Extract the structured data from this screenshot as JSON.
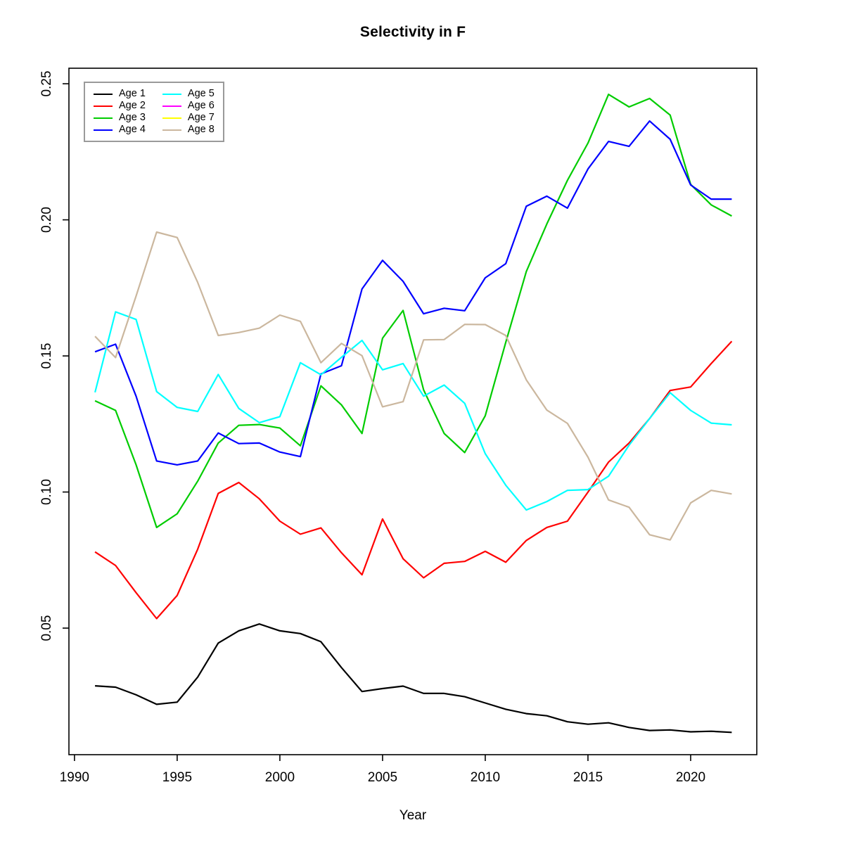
{
  "title": "Selectivity in F",
  "chart_data": {
    "type": "line",
    "title": "Selectivity in F",
    "xlabel": "Year",
    "ylabel": "",
    "grid": false,
    "legend_position": "top-left",
    "legend_columns": 2,
    "x_ticks": [
      1990,
      1995,
      2000,
      2005,
      2010,
      2015,
      2020
    ],
    "x_tick_labels": [
      "1990",
      "1995",
      "2000",
      "2005",
      "2010",
      "2015",
      "2020"
    ],
    "y_ticks": [
      0.05,
      0.1,
      0.15,
      0.2,
      0.25
    ],
    "y_tick_labels": [
      "0.05",
      "0.10",
      "0.15",
      "0.20",
      "0.25"
    ],
    "xlim": [
      1989.73,
      2023.22
    ],
    "ylim": [
      0.0035,
      0.2557
    ],
    "x": [
      1991,
      1992,
      1993,
      1994,
      1995,
      1996,
      1997,
      1998,
      1999,
      2000,
      2001,
      2002,
      2003,
      2004,
      2005,
      2006,
      2007,
      2008,
      2009,
      2010,
      2011,
      2012,
      2013,
      2014,
      2015,
      2016,
      2017,
      2018,
      2019,
      2020,
      2021,
      2022
    ],
    "series": [
      {
        "name": "Age 1",
        "color": "#000000",
        "visible": true,
        "values": [
          0.0288,
          0.0283,
          0.0255,
          0.022,
          0.0228,
          0.032,
          0.0445,
          0.049,
          0.0515,
          0.049,
          0.048,
          0.045,
          0.0355,
          0.0267,
          0.0278,
          0.0287,
          0.026,
          0.026,
          0.0248,
          0.0225,
          0.0202,
          0.0186,
          0.0178,
          0.0156,
          0.0147,
          0.0152,
          0.0135,
          0.0124,
          0.0126,
          0.0119,
          0.0121,
          0.0117
        ]
      },
      {
        "name": "Age 2",
        "color": "#FF0000",
        "visible": true,
        "values": [
          0.078,
          0.073,
          0.063,
          0.0535,
          0.062,
          0.079,
          0.0995,
          0.1035,
          0.0975,
          0.0893,
          0.0845,
          0.0868,
          0.0777,
          0.0696,
          0.0901,
          0.0755,
          0.0685,
          0.0738,
          0.0745,
          0.0782,
          0.0742,
          0.0822,
          0.087,
          0.0893,
          0.1,
          0.111,
          0.118,
          0.127,
          0.1373,
          0.1386,
          0.1472,
          0.1554
        ]
      },
      {
        "name": "Age 3",
        "color": "#00CC00",
        "visible": true,
        "values": [
          0.1335,
          0.13,
          0.11,
          0.087,
          0.092,
          0.104,
          0.118,
          0.1245,
          0.1248,
          0.1235,
          0.117,
          0.139,
          0.132,
          0.1215,
          0.1565,
          0.1667,
          0.1375,
          0.1215,
          0.1145,
          0.128,
          0.155,
          0.181,
          0.1985,
          0.2145,
          0.2282,
          0.2461,
          0.2415,
          0.2446,
          0.2385,
          0.213,
          0.2055,
          0.2014
        ]
      },
      {
        "name": "Age 4",
        "color": "#0000FF",
        "visible": true,
        "values": [
          0.1515,
          0.1543,
          0.1352,
          0.1114,
          0.11,
          0.1114,
          0.1217,
          0.1178,
          0.118,
          0.1147,
          0.113,
          0.1434,
          0.1464,
          0.1746,
          0.1851,
          0.1774,
          0.1655,
          0.1675,
          0.1666,
          0.1787,
          0.1839,
          0.205,
          0.2087,
          0.2043,
          0.2187,
          0.2288,
          0.227,
          0.2363,
          0.2296,
          0.2128,
          0.2076,
          0.2076
        ]
      },
      {
        "name": "Age 5",
        "color": "#00FFFF",
        "visible": true,
        "values": [
          0.1366,
          0.1662,
          0.1634,
          0.1369,
          0.1311,
          0.1296,
          0.1432,
          0.1307,
          0.1255,
          0.1277,
          0.1475,
          0.1431,
          0.1495,
          0.1557,
          0.1449,
          0.1472,
          0.1352,
          0.1393,
          0.1326,
          0.1141,
          0.1025,
          0.0934,
          0.0965,
          0.1006,
          0.1009,
          0.1058,
          0.1172,
          0.127,
          0.1365,
          0.13,
          0.1253,
          0.1247
        ]
      },
      {
        "name": "Age 6",
        "color": "#FF00FF",
        "visible": false,
        "values": [],
        "note": "legend entry only; line not visible in plot (overplotted)"
      },
      {
        "name": "Age 7",
        "color": "#FFFF00",
        "visible": false,
        "values": [],
        "note": "legend entry only; line not visible in plot (overplotted)"
      },
      {
        "name": "Age 8",
        "color": "#CBB79E",
        "visible": true,
        "values": [
          0.1572,
          0.1494,
          0.172,
          0.1955,
          0.1935,
          0.177,
          0.1575,
          0.1586,
          0.1602,
          0.165,
          0.1627,
          0.1475,
          0.1546,
          0.1501,
          0.1313,
          0.1332,
          0.1559,
          0.156,
          0.1616,
          0.1615,
          0.1575,
          0.1412,
          0.1301,
          0.1252,
          0.1128,
          0.0971,
          0.0944,
          0.0843,
          0.0824,
          0.096,
          0.1006,
          0.0993
        ]
      }
    ]
  }
}
